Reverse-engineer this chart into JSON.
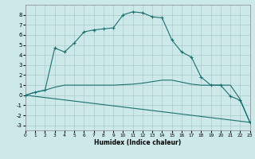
{
  "xlabel": "Humidex (Indice chaleur)",
  "background_color": "#cce8e8",
  "grid_color": "#aacccc",
  "line_color": "#1a7070",
  "xlim": [
    0,
    23
  ],
  "ylim": [
    -3.5,
    9.0
  ],
  "xticks": [
    0,
    1,
    2,
    3,
    4,
    5,
    6,
    7,
    8,
    9,
    10,
    11,
    12,
    13,
    14,
    15,
    16,
    17,
    18,
    19,
    20,
    21,
    22,
    23
  ],
  "yticks": [
    -3,
    -2,
    -1,
    0,
    1,
    2,
    3,
    4,
    5,
    6,
    7,
    8
  ],
  "curve1_x": [
    0,
    1,
    2,
    3,
    4,
    5,
    6,
    7,
    8,
    9,
    10,
    11,
    12,
    13,
    14,
    15,
    16,
    17,
    18,
    19,
    20,
    21,
    22,
    23
  ],
  "curve1_y": [
    0,
    0.3,
    0.5,
    4.7,
    4.3,
    5.2,
    6.3,
    6.5,
    6.6,
    6.7,
    8.0,
    8.3,
    8.2,
    7.8,
    7.7,
    5.5,
    4.3,
    3.8,
    1.8,
    1.0,
    1.0,
    -0.1,
    -0.5,
    -2.7
  ],
  "curve2_x": [
    0,
    1,
    2,
    3,
    4,
    5,
    6,
    7,
    8,
    9,
    10,
    11,
    12,
    13,
    14,
    15,
    16,
    17,
    18,
    19,
    20,
    21,
    22,
    23
  ],
  "curve2_y": [
    0,
    0.3,
    0.5,
    0.8,
    1.0,
    1.0,
    1.0,
    1.0,
    1.0,
    1.0,
    1.05,
    1.1,
    1.2,
    1.35,
    1.5,
    1.5,
    1.3,
    1.1,
    1.0,
    1.0,
    1.0,
    1.0,
    -0.4,
    -2.7
  ],
  "curve3_x": [
    0,
    23
  ],
  "curve3_y": [
    0,
    -2.7
  ]
}
